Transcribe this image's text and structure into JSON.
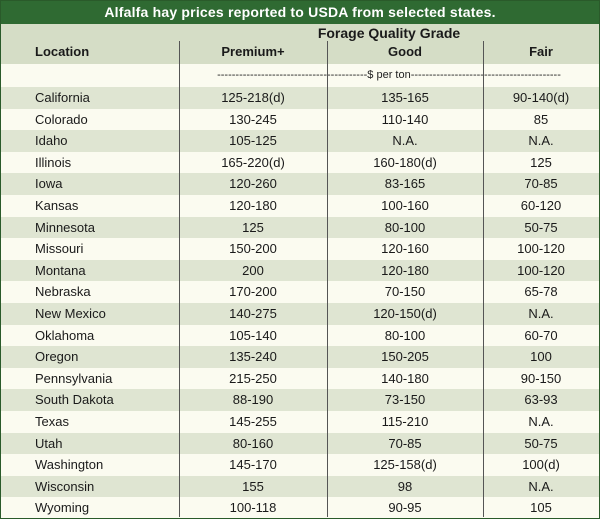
{
  "title": "Alfalfa hay prices reported to USDA from selected states.",
  "header": {
    "group_label": "Forage Quality Grade",
    "columns": [
      "Location",
      "Premium+",
      "Good",
      "Fair"
    ],
    "unit_line": "-----------------------------------------$ per ton-----------------------------------------"
  },
  "rows": [
    {
      "location": "California",
      "premium": "125-218(d)",
      "good": "135-165",
      "fair": "90-140(d)"
    },
    {
      "location": "Colorado",
      "premium": "130-245",
      "good": "110-140",
      "fair": "85"
    },
    {
      "location": "Idaho",
      "premium": "105-125",
      "good": "N.A.",
      "fair": "N.A."
    },
    {
      "location": "Illinois",
      "premium": "165-220(d)",
      "good": "160-180(d)",
      "fair": "125"
    },
    {
      "location": "Iowa",
      "premium": "120-260",
      "good": "83-165",
      "fair": "70-85"
    },
    {
      "location": "Kansas",
      "premium": "120-180",
      "good": "100-160",
      "fair": "60-120"
    },
    {
      "location": "Minnesota",
      "premium": "125",
      "good": "80-100",
      "fair": "50-75"
    },
    {
      "location": "Missouri",
      "premium": "150-200",
      "good": "120-160",
      "fair": "100-120"
    },
    {
      "location": "Montana",
      "premium": "200",
      "good": "120-180",
      "fair": "100-120"
    },
    {
      "location": "Nebraska",
      "premium": "170-200",
      "good": "70-150",
      "fair": "65-78"
    },
    {
      "location": "New Mexico",
      "premium": "140-275",
      "good": "120-150(d)",
      "fair": "N.A."
    },
    {
      "location": "Oklahoma",
      "premium": "105-140",
      "good": "80-100",
      "fair": "60-70"
    },
    {
      "location": "Oregon",
      "premium": "135-240",
      "good": "150-205",
      "fair": "100"
    },
    {
      "location": "Pennsylvania",
      "premium": "215-250",
      "good": "140-180",
      "fair": "90-150"
    },
    {
      "location": "South Dakota",
      "premium": "88-190",
      "good": "73-150",
      "fair": "63-93"
    },
    {
      "location": "Texas",
      "premium": "145-255",
      "good": "115-210",
      "fair": "N.A."
    },
    {
      "location": "Utah",
      "premium": "80-160",
      "good": "70-85",
      "fair": "50-75"
    },
    {
      "location": "Washington",
      "premium": "145-170",
      "good": "125-158(d)",
      "fair": "100(d)"
    },
    {
      "location": "Wisconsin",
      "premium": "155",
      "good": "98",
      "fair": "N.A."
    },
    {
      "location": "Wyoming",
      "premium": "100-118",
      "good": "90-95",
      "fair": "105"
    }
  ]
}
